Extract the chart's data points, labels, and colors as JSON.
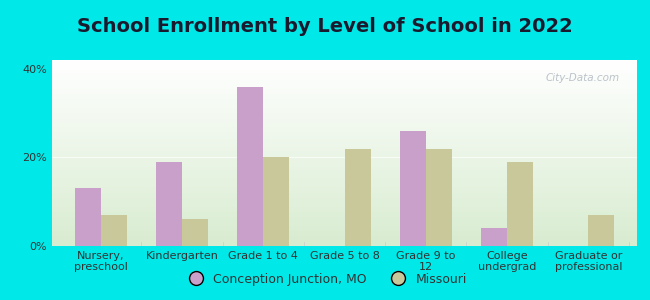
{
  "title": "School Enrollment by Level of School in 2022",
  "categories": [
    "Nursery,\npreschool",
    "Kindergarten",
    "Grade 1 to 4",
    "Grade 5 to 8",
    "Grade 9 to\n12",
    "College\nundergrad",
    "Graduate or\nprofessional"
  ],
  "conception_values": [
    13,
    19,
    36,
    0,
    26,
    4,
    0
  ],
  "missouri_values": [
    7,
    6,
    20,
    22,
    22,
    19,
    7
  ],
  "conception_color": "#c9a0c9",
  "missouri_color": "#c8c89a",
  "background_outer": "#00e8e8",
  "background_inner_top": "#ffffff",
  "background_inner_bottom": "#d8ecd0",
  "ylim": [
    0,
    42
  ],
  "yticks": [
    0,
    20,
    40
  ],
  "ytick_labels": [
    "0%",
    "20%",
    "40%"
  ],
  "title_fontsize": 14,
  "tick_fontsize": 8,
  "legend_label_1": "Conception Junction, MO",
  "legend_label_2": "Missouri",
  "watermark": "City-Data.com"
}
